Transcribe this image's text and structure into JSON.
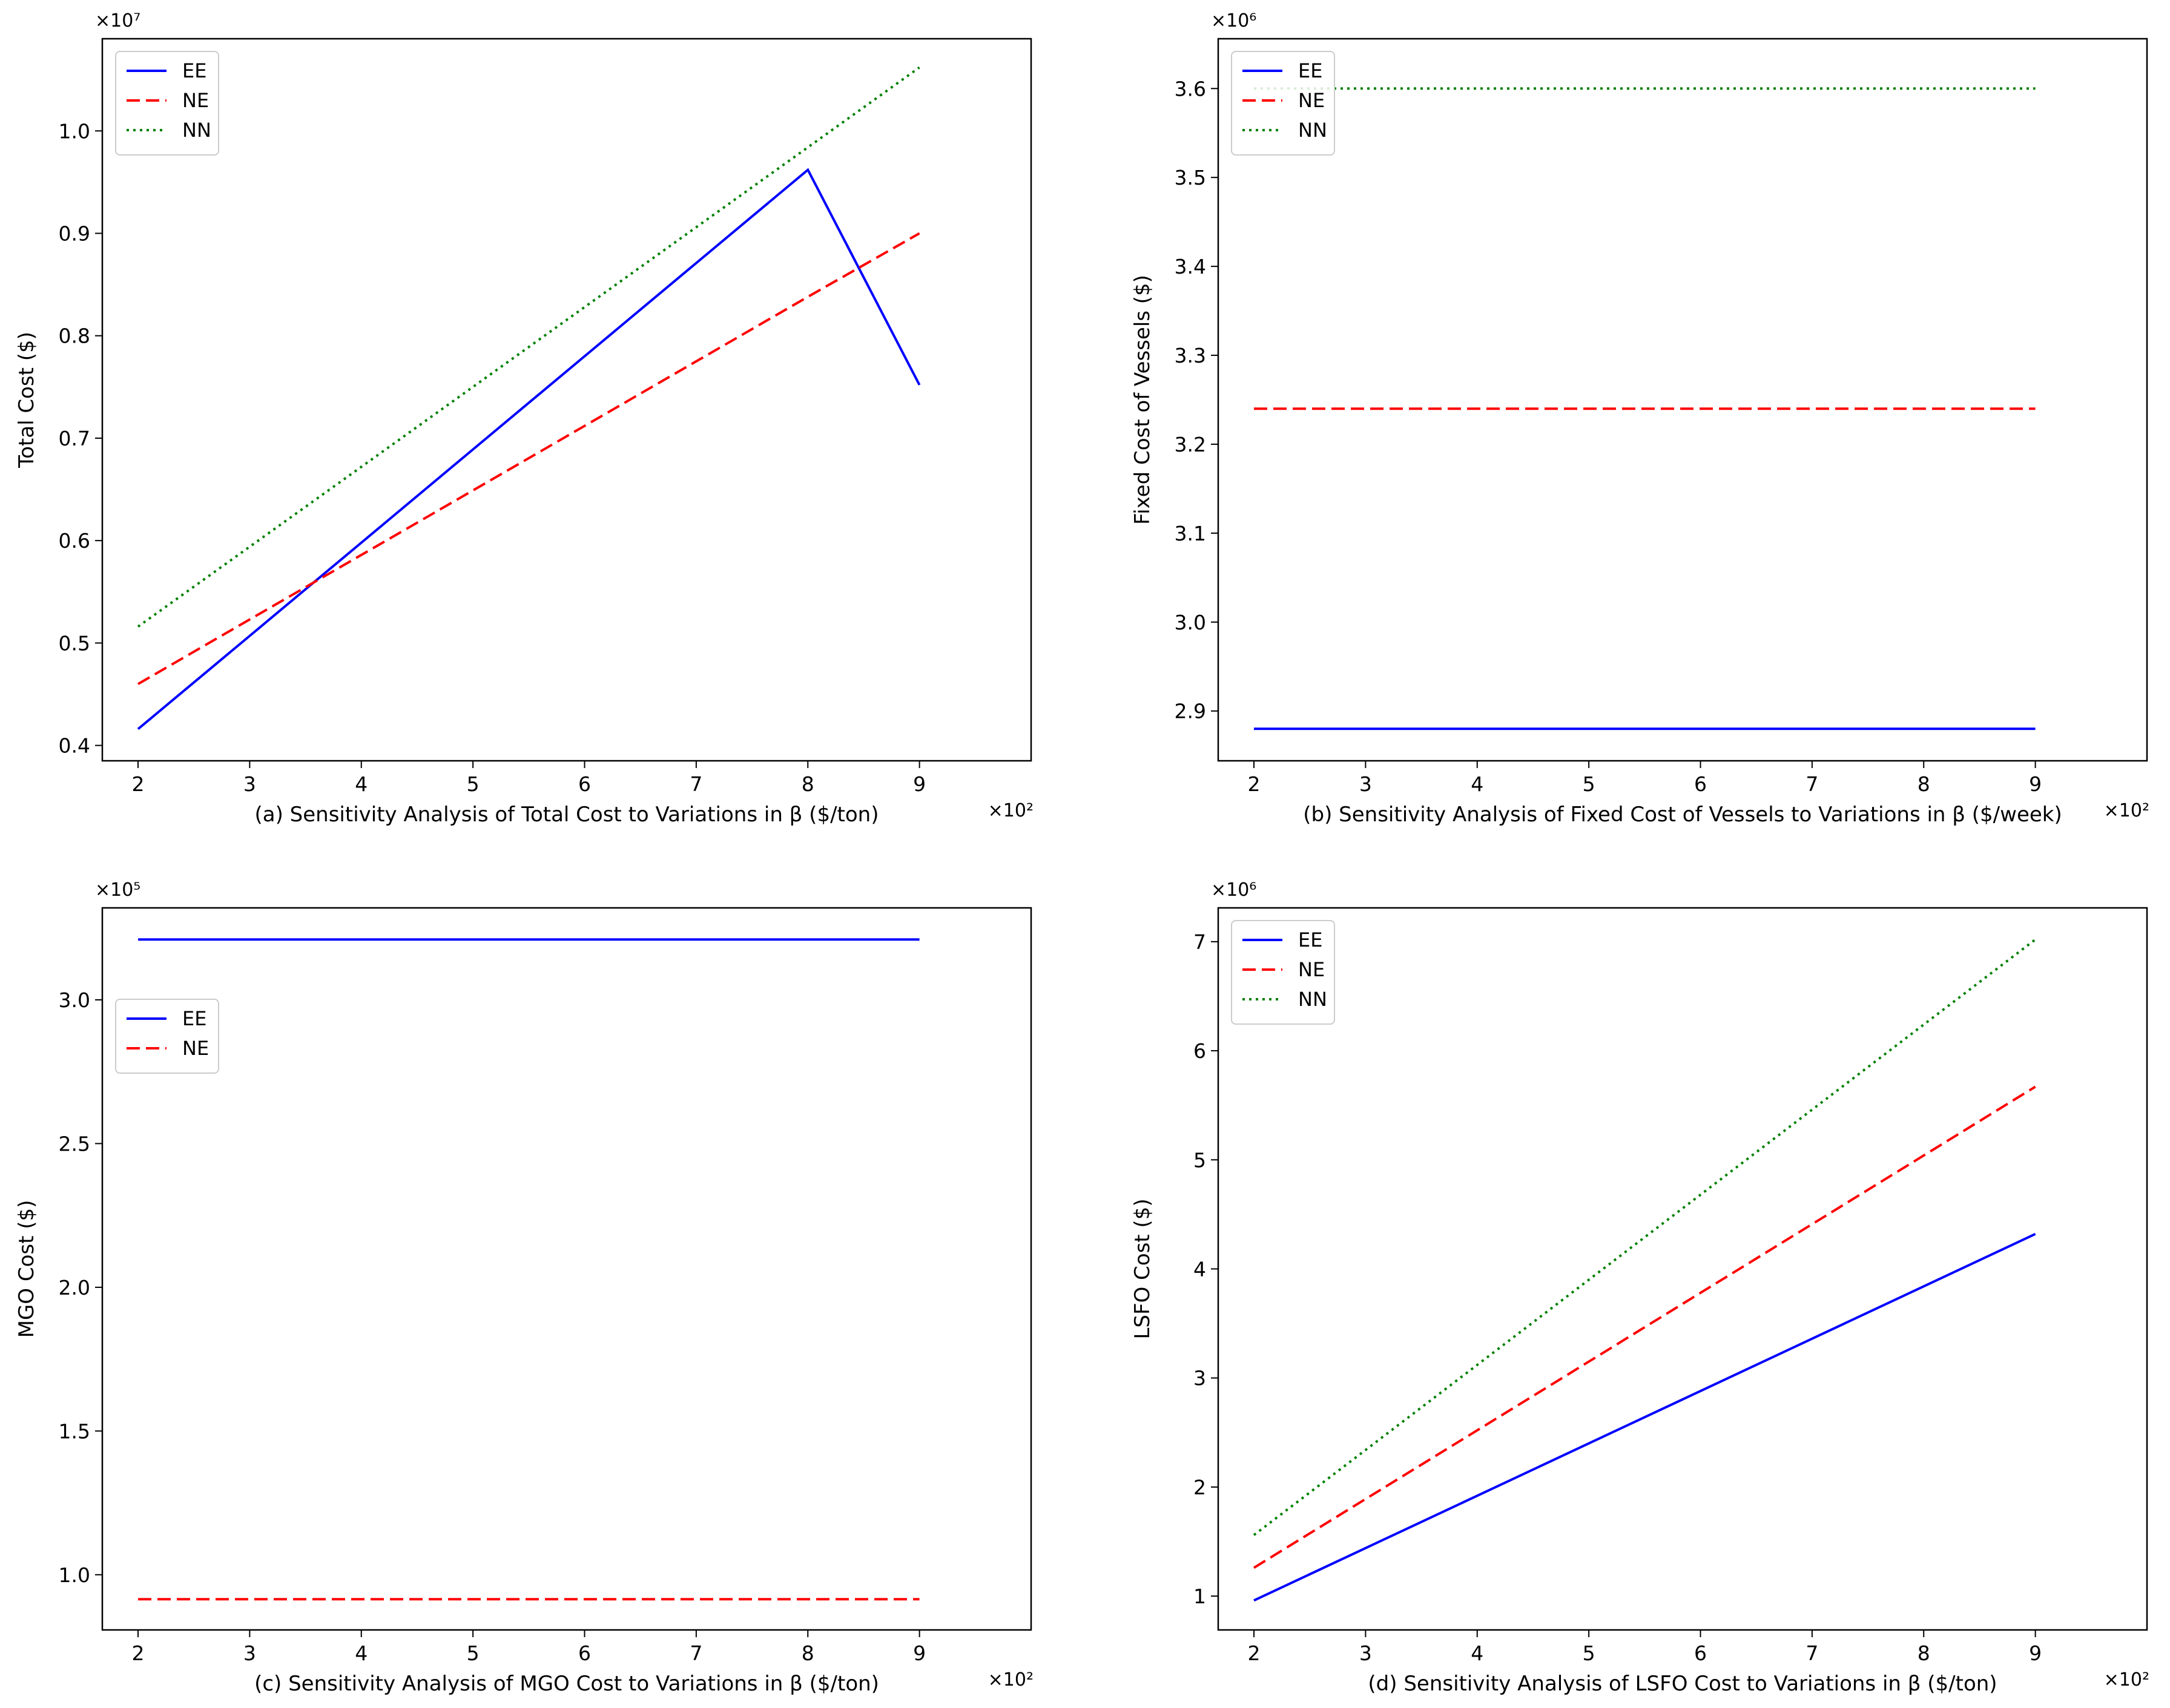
{
  "chart_data": [
    {
      "id": "a",
      "type": "line",
      "xlabel": "(a) Sensitivity Analysis of Total Cost to Variations in β ($/ton)",
      "ylabel": "Total Cost ($)",
      "x_multiplier": "×10²",
      "y_multiplier": "×10⁷",
      "x": [
        200,
        300,
        400,
        500,
        600,
        700,
        800,
        900
      ],
      "xlim": [
        168,
        1000
      ],
      "ylim": [
        3850000,
        10900000
      ],
      "x_ticks": [
        200,
        300,
        400,
        500,
        600,
        700,
        800,
        900
      ],
      "x_tick_labels": [
        "2",
        "3",
        "4",
        "5",
        "6",
        "7",
        "8",
        "9"
      ],
      "y_ticks": [
        4000000,
        5000000,
        6000000,
        7000000,
        8000000,
        9000000,
        10000000
      ],
      "y_tick_labels": [
        "0.4",
        "0.5",
        "0.6",
        "0.7",
        "0.8",
        "0.9",
        "1.0"
      ],
      "legend_position": "upper-left",
      "series": [
        {
          "name": "EE",
          "color": "#0000ff",
          "style": "solid",
          "values": [
            4160000,
            5070000,
            5980000,
            6890000,
            7800000,
            8710000,
            9620000,
            7520000
          ]
        },
        {
          "name": "NE",
          "color": "#ff0000",
          "style": "dashed",
          "values": [
            4600000,
            5230000,
            5860000,
            6490000,
            7120000,
            7750000,
            8380000,
            9000000
          ]
        },
        {
          "name": "NN",
          "color": "#008000",
          "style": "dotted",
          "values": [
            5160000,
            5940000,
            6720000,
            7500000,
            8280000,
            9060000,
            9840000,
            10620000
          ]
        }
      ]
    },
    {
      "id": "b",
      "type": "line",
      "xlabel": "(b) Sensitivity Analysis of Fixed Cost of Vessels to Variations in β ($/week)",
      "ylabel": "Fixed Cost of Vessels ($)",
      "x_multiplier": "×10²",
      "y_multiplier": "×10⁶",
      "x": [
        200,
        300,
        400,
        500,
        600,
        700,
        800,
        900
      ],
      "xlim": [
        168,
        1000
      ],
      "ylim": [
        2844000,
        3656000
      ],
      "x_ticks": [
        200,
        300,
        400,
        500,
        600,
        700,
        800,
        900
      ],
      "x_tick_labels": [
        "2",
        "3",
        "4",
        "5",
        "6",
        "7",
        "8",
        "9"
      ],
      "y_ticks": [
        2900000,
        3000000,
        3100000,
        3200000,
        3300000,
        3400000,
        3500000,
        3600000
      ],
      "y_tick_labels": [
        "2.9",
        "3.0",
        "3.1",
        "3.2",
        "3.3",
        "3.4",
        "3.5",
        "3.6"
      ],
      "legend_position": "upper-left",
      "series": [
        {
          "name": "EE",
          "color": "#0000ff",
          "style": "solid",
          "values": [
            2880000,
            2880000,
            2880000,
            2880000,
            2880000,
            2880000,
            2880000,
            2880000
          ]
        },
        {
          "name": "NE",
          "color": "#ff0000",
          "style": "dashed",
          "values": [
            3240000,
            3240000,
            3240000,
            3240000,
            3240000,
            3240000,
            3240000,
            3240000
          ]
        },
        {
          "name": "NN",
          "color": "#008000",
          "style": "dotted",
          "values": [
            3600000,
            3600000,
            3600000,
            3600000,
            3600000,
            3600000,
            3600000,
            3600000
          ]
        }
      ]
    },
    {
      "id": "c",
      "type": "line",
      "xlabel": "(c) Sensitivity Analysis of MGO Cost to Variations in β ($/ton)",
      "ylabel": "MGO Cost ($)",
      "x_multiplier": "×10²",
      "y_multiplier": "×10⁵",
      "x": [
        200,
        300,
        400,
        500,
        600,
        700,
        800,
        900
      ],
      "xlim": [
        168,
        1000
      ],
      "ylim": [
        80800,
        332000
      ],
      "x_ticks": [
        200,
        300,
        400,
        500,
        600,
        700,
        800,
        900
      ],
      "x_tick_labels": [
        "2",
        "3",
        "4",
        "5",
        "6",
        "7",
        "8",
        "9"
      ],
      "y_ticks": [
        100000,
        150000,
        200000,
        250000,
        300000
      ],
      "y_tick_labels": [
        "1.0",
        "1.5",
        "2.0",
        "2.5",
        "3.0"
      ],
      "legend_position": "center-left",
      "series": [
        {
          "name": "EE",
          "color": "#0000ff",
          "style": "solid",
          "values": [
            321000,
            321000,
            321000,
            321000,
            321000,
            321000,
            321000,
            321000
          ]
        },
        {
          "name": "NE",
          "color": "#ff0000",
          "style": "dashed",
          "values": [
            91500,
            91500,
            91500,
            91500,
            91500,
            91500,
            91500,
            91500
          ]
        }
      ]
    },
    {
      "id": "d",
      "type": "line",
      "xlabel": "(d) Sensitivity Analysis of LSFO Cost to Variations in β ($/ton)",
      "ylabel": "LSFO Cost ($)",
      "x_multiplier": "×10²",
      "y_multiplier": "×10⁶",
      "x": [
        200,
        300,
        400,
        500,
        600,
        700,
        800,
        900
      ],
      "xlim": [
        168,
        1000
      ],
      "ylim": [
        690000,
        7310000
      ],
      "x_ticks": [
        200,
        300,
        400,
        500,
        600,
        700,
        800,
        900
      ],
      "x_tick_labels": [
        "2",
        "3",
        "4",
        "5",
        "6",
        "7",
        "8",
        "9"
      ],
      "y_ticks": [
        1000000,
        2000000,
        3000000,
        4000000,
        5000000,
        6000000,
        7000000
      ],
      "y_tick_labels": [
        "1",
        "2",
        "3",
        "4",
        "5",
        "6",
        "7"
      ],
      "legend_position": "upper-left",
      "series": [
        {
          "name": "EE",
          "color": "#0000ff",
          "style": "solid",
          "values": [
            960000,
            1440000,
            1920000,
            2400000,
            2880000,
            3360000,
            3840000,
            4320000
          ]
        },
        {
          "name": "NE",
          "color": "#ff0000",
          "style": "dashed",
          "values": [
            1260000,
            1890000,
            2520000,
            3150000,
            3780000,
            4410000,
            5040000,
            5670000
          ]
        },
        {
          "name": "NN",
          "color": "#008000",
          "style": "dotted",
          "values": [
            1560000,
            2340000,
            3120000,
            3900000,
            4680000,
            5460000,
            6240000,
            7020000
          ]
        }
      ]
    }
  ]
}
